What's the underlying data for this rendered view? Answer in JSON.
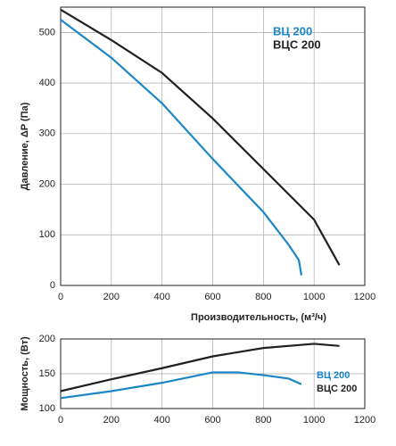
{
  "chart_data": [
    {
      "type": "line",
      "ylabel": "Давление, ΔP (Па)",
      "xlabel": "Производительность, (м³/ч)",
      "xlim": [
        0,
        1200
      ],
      "xticks": [
        0,
        200,
        400,
        600,
        800,
        1000,
        1200
      ],
      "ylim": [
        0,
        550
      ],
      "yticks": [
        0,
        100,
        200,
        300,
        400,
        500
      ],
      "grid": true,
      "legend": "upper right",
      "series": [
        {
          "name": "ВЦ 200",
          "color": "#1a86c8",
          "x": [
            0,
            200,
            400,
            600,
            800,
            900,
            940,
            950
          ],
          "values": [
            525,
            450,
            360,
            250,
            145,
            80,
            50,
            20
          ]
        },
        {
          "name": "ВЦС 200",
          "color": "#231f20",
          "x": [
            0,
            200,
            400,
            600,
            800,
            1000,
            1100
          ],
          "values": [
            545,
            485,
            420,
            330,
            230,
            130,
            40
          ]
        }
      ]
    },
    {
      "type": "line",
      "ylabel": "Мощность, (Вт)",
      "xlim": [
        0,
        1200
      ],
      "xticks": [
        0,
        200,
        400,
        600,
        800,
        1000,
        1200
      ],
      "ylim": [
        100,
        200
      ],
      "yticks": [
        100,
        150,
        200
      ],
      "grid": true,
      "legend": "right",
      "series": [
        {
          "name": "ВЦ 200",
          "color": "#1a86c8",
          "x": [
            0,
            200,
            400,
            600,
            700,
            800,
            900,
            950
          ],
          "values": [
            115,
            125,
            137,
            152,
            152,
            148,
            143,
            135
          ]
        },
        {
          "name": "ВЦС 200",
          "color": "#231f20",
          "x": [
            0,
            200,
            400,
            600,
            800,
            1000,
            1100
          ],
          "values": [
            125,
            142,
            158,
            175,
            187,
            193,
            190
          ]
        }
      ]
    }
  ]
}
